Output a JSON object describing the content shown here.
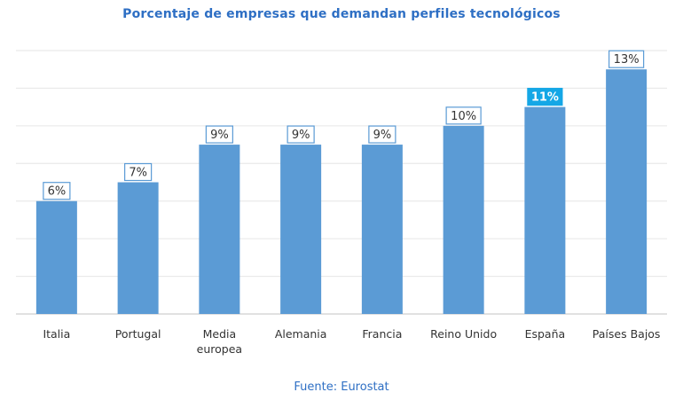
{
  "chart_data": {
    "type": "bar",
    "title": "Porcentaje de empresas que demandan perfiles tecnológicos",
    "categories": [
      [
        "Italia"
      ],
      [
        "Portugal"
      ],
      [
        "Media",
        "europea"
      ],
      [
        "Alemania"
      ],
      [
        "Francia"
      ],
      [
        "Reino Unido"
      ],
      [
        "España"
      ],
      [
        "Países Bajos"
      ]
    ],
    "values": [
      6,
      7,
      9,
      9,
      9,
      10,
      11,
      13
    ],
    "data_labels": [
      "6%",
      "7%",
      "9%",
      "9%",
      "9%",
      "10%",
      "11%",
      "13%"
    ],
    "highlight_index": 6,
    "xlabel": "",
    "ylabel": "",
    "ylim": [
      0,
      14
    ],
    "gridlines": [
      2,
      4,
      6,
      8,
      10,
      12,
      14
    ],
    "grid": true,
    "legend": false,
    "colors": {
      "bar": "#5b9bd5",
      "highlight_label_bg": "#14a7e6",
      "label_text": "#333333",
      "label_border": "#5b9bd5",
      "title": "#2e6fc4",
      "source": "#2e6fc4",
      "grid": "#e6e6e6",
      "axis": "#cfcfcf"
    }
  },
  "source": "Fuente: Eurostat"
}
